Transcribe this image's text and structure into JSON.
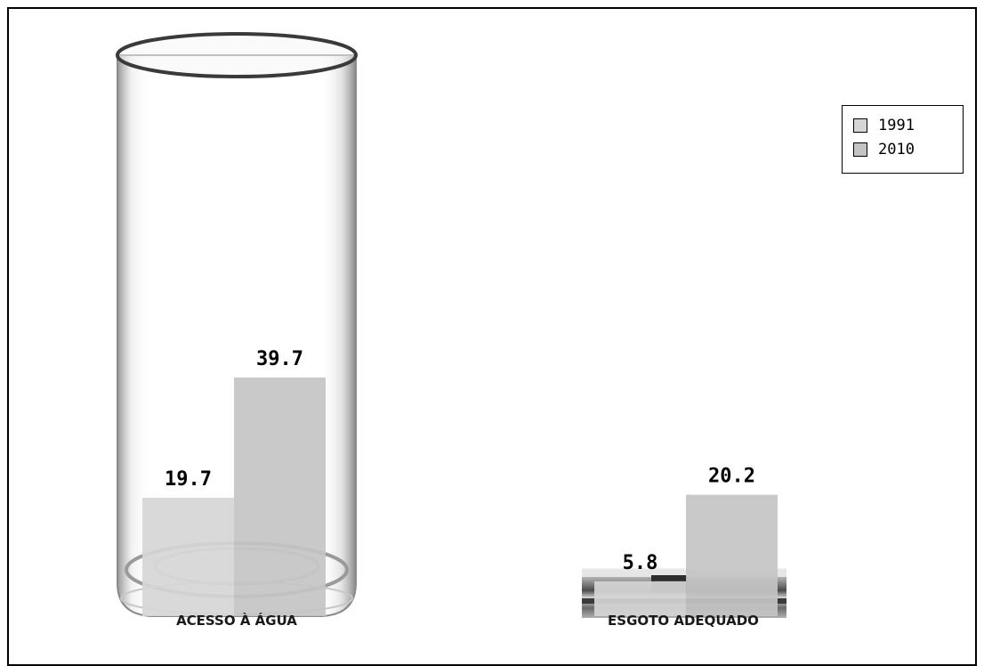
{
  "chart_data": {
    "type": "bar",
    "categories": [
      "ACESSO À ÁGUA",
      "ESGOTO ADEQUADO"
    ],
    "series": [
      {
        "name": "1991",
        "values": [
          19.7,
          5.8
        ],
        "color": "#d6d6d6"
      },
      {
        "name": "2010",
        "values": [
          39.7,
          20.2
        ],
        "color": "#c4c4c4"
      }
    ],
    "ylim": [
      0,
      100
    ],
    "grid": false,
    "legend": "top-right",
    "category_icons": [
      "glass-icon",
      "pipe-icon"
    ]
  }
}
